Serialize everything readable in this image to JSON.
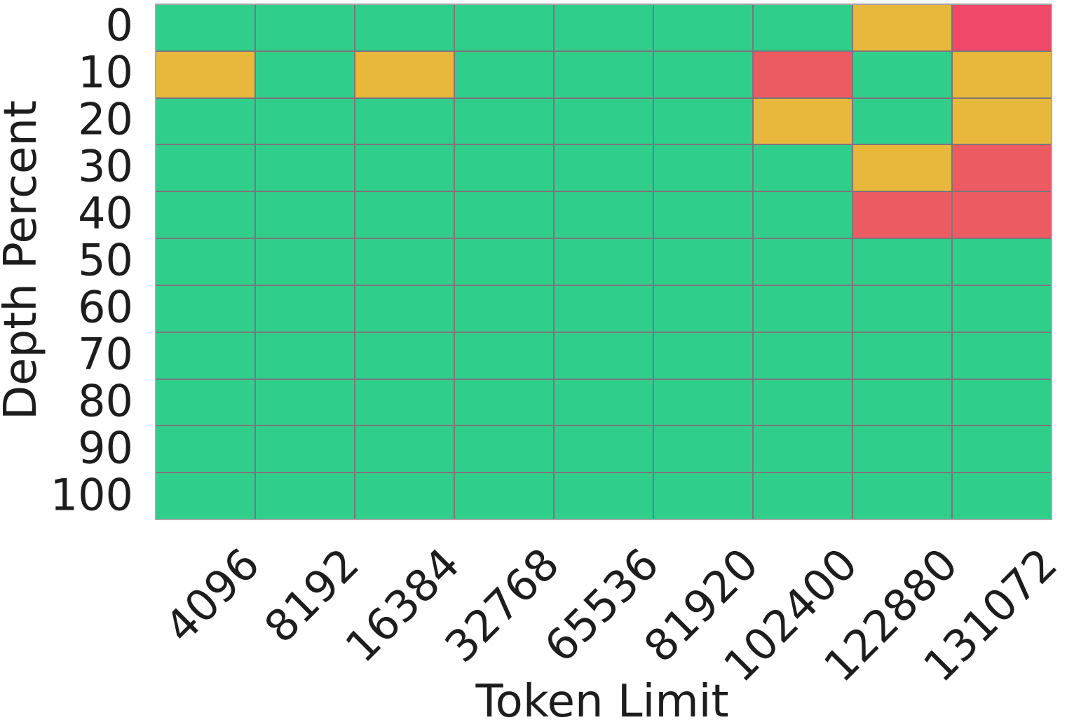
{
  "chart_data": {
    "type": "heatmap",
    "title": "",
    "xlabel": "Token Limit",
    "ylabel": "Depth Percent",
    "x_categories": [
      "4096",
      "8192",
      "16384",
      "32768",
      "65536",
      "81920",
      "102400",
      "122880",
      "131072"
    ],
    "y_categories": [
      "0",
      "10",
      "20",
      "30",
      "40",
      "50",
      "60",
      "70",
      "80",
      "90",
      "100"
    ],
    "legend_position": "none",
    "grid_on": true,
    "cell_states": [
      [
        "green",
        "green",
        "green",
        "green",
        "green",
        "green",
        "green",
        "yellow",
        "red"
      ],
      [
        "yellow",
        "green",
        "yellow",
        "green",
        "green",
        "green",
        "salmon",
        "green",
        "yellow"
      ],
      [
        "green",
        "green",
        "green",
        "green",
        "green",
        "green",
        "yellow",
        "green",
        "yellow"
      ],
      [
        "green",
        "green",
        "green",
        "green",
        "green",
        "green",
        "green",
        "yellow",
        "salmon"
      ],
      [
        "green",
        "green",
        "green",
        "green",
        "green",
        "green",
        "green",
        "salmon",
        "salmon"
      ],
      [
        "green",
        "green",
        "green",
        "green",
        "green",
        "green",
        "green",
        "green",
        "green"
      ],
      [
        "green",
        "green",
        "green",
        "green",
        "green",
        "green",
        "green",
        "green",
        "green"
      ],
      [
        "green",
        "green",
        "green",
        "green",
        "green",
        "green",
        "green",
        "green",
        "green"
      ],
      [
        "green",
        "green",
        "green",
        "green",
        "green",
        "green",
        "green",
        "green",
        "green"
      ],
      [
        "green",
        "green",
        "green",
        "green",
        "green",
        "green",
        "green",
        "green",
        "green"
      ],
      [
        "green",
        "green",
        "green",
        "green",
        "green",
        "green",
        "green",
        "green",
        "green"
      ]
    ],
    "palette": {
      "green": "#2FCF8B",
      "yellow": "#E8B83C",
      "salmon": "#EB5B61",
      "red": "#EF4869"
    },
    "gridline_color": "#7E747B",
    "border_color": "#A9A4AA",
    "text_color": "#1D1D1D"
  }
}
